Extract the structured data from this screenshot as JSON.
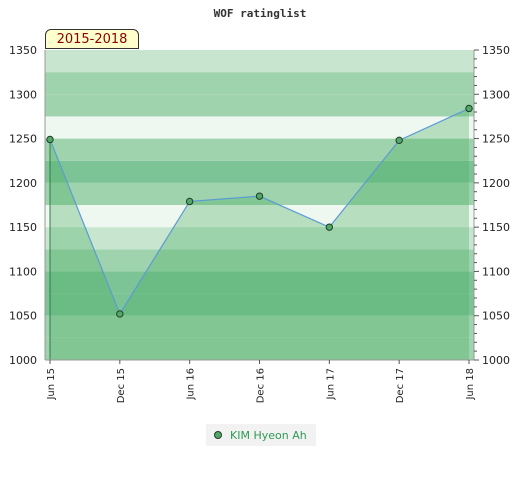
{
  "chart_data": {
    "type": "area",
    "title": "WOF ratinglist",
    "period_label": "2015-2018",
    "categories": [
      "Jun 15",
      "Dec 15",
      "Jun 16",
      "Dec 16",
      "Jun 17",
      "Dec 17",
      "Jun 18"
    ],
    "series": [
      {
        "name": "KIM Hyeon Ah",
        "values": [
          1249,
          1052,
          1179,
          1185,
          1150,
          1248,
          1284
        ]
      }
    ],
    "ylim": [
      1000,
      1350
    ],
    "yticks": [
      1000,
      1050,
      1100,
      1150,
      1200,
      1250,
      1300,
      1350
    ],
    "xlabel": "",
    "ylabel": "",
    "grid": true,
    "legend_position": "bottom-center",
    "colors": {
      "line": "#5b9bd5",
      "area": "#4caf65",
      "marker": "#52a76a",
      "legend_text": "#2e9a55",
      "band_dark": "#7cc495",
      "band_mid": "#9fd3ad",
      "band_light": "#c8e6cf",
      "band_pale": "#eef7f0"
    }
  }
}
